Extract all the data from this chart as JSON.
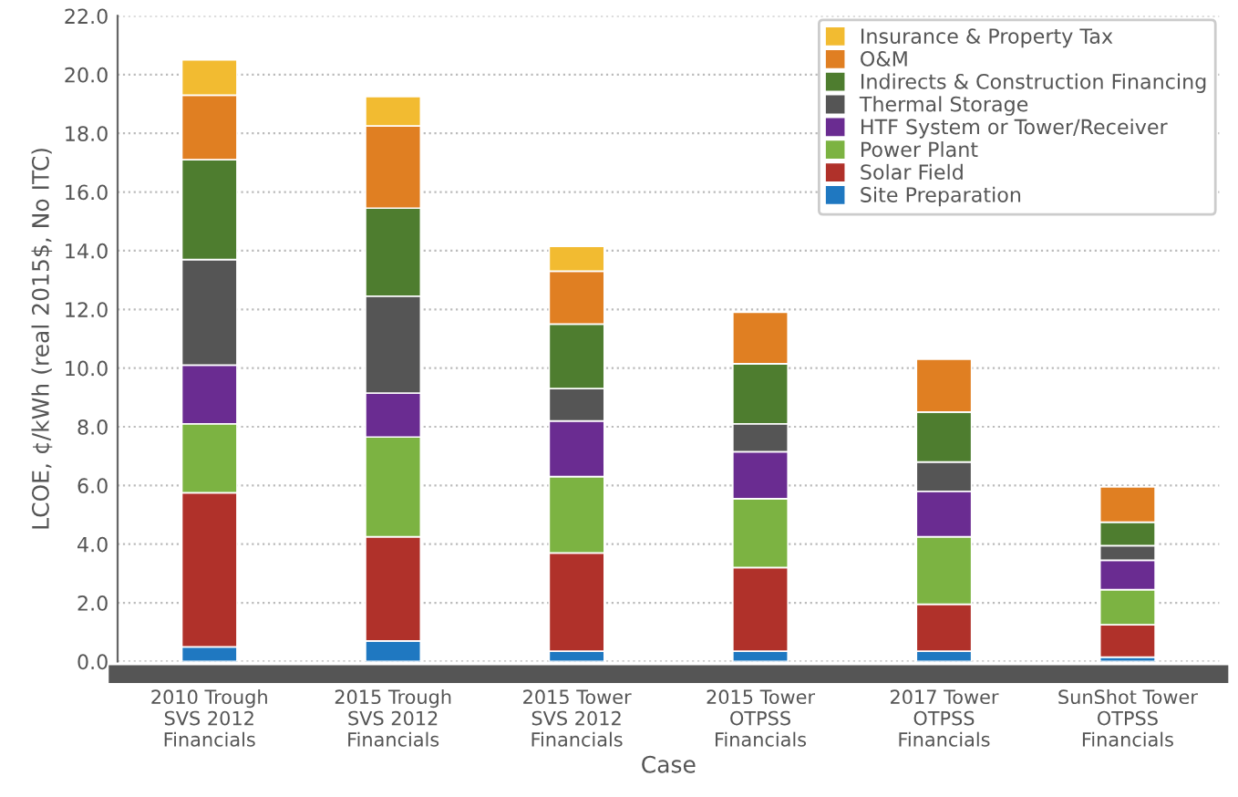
{
  "chart_data": {
    "type": "bar",
    "stacked": true,
    "ylabel": "LCOE, ¢/kWh (real 2015$, No ITC)",
    "xlabel": "Case",
    "categories": [
      "2010 Trough\nSVS 2012\nFinancials",
      "2015 Trough\nSVS 2012\nFinancials",
      "2015 Tower\nSVS 2012\nFinancials",
      "2015 Tower\nOTPSS\nFinancials",
      "2017 Tower\nOTPSS\nFinancials",
      "SunShot Tower\nOTPSS\nFinancials"
    ],
    "series": [
      {
        "name": "Site Preparation",
        "color": "#1f78c1",
        "values": [
          0.5,
          0.7,
          0.35,
          0.35,
          0.35,
          0.15
        ]
      },
      {
        "name": "Solar Field",
        "color": "#b0312a",
        "values": [
          5.25,
          3.55,
          3.35,
          2.85,
          1.6,
          1.1
        ]
      },
      {
        "name": "Power Plant",
        "color": "#7cb342",
        "values": [
          2.35,
          3.4,
          2.6,
          2.35,
          2.3,
          1.2
        ]
      },
      {
        "name": "HTF System or Tower/Receiver",
        "color": "#6a2c91",
        "values": [
          2.0,
          1.5,
          1.9,
          1.6,
          1.55,
          1.0
        ]
      },
      {
        "name": "Thermal Storage",
        "color": "#555555",
        "values": [
          3.6,
          3.3,
          1.1,
          0.95,
          1.0,
          0.5
        ]
      },
      {
        "name": "Indirects & Construction Financing",
        "color": "#4e7d2f",
        "values": [
          3.4,
          3.0,
          2.2,
          2.05,
          1.7,
          0.8
        ]
      },
      {
        "name": "O&M",
        "color": "#e07f22",
        "values": [
          2.2,
          2.8,
          1.8,
          1.75,
          1.8,
          1.2
        ]
      },
      {
        "name": "Insurance & Property Tax",
        "color": "#f2bb31",
        "values": [
          1.2,
          1.0,
          0.85,
          null,
          null,
          null
        ]
      }
    ],
    "ylim": [
      0,
      22
    ],
    "yticks": [
      {
        "value": 0,
        "label": "0.0"
      },
      {
        "value": 2,
        "label": "2.0"
      },
      {
        "value": 4,
        "label": "4.0"
      },
      {
        "value": 6,
        "label": "6.0"
      },
      {
        "value": 8,
        "label": "8.0"
      },
      {
        "value": 10,
        "label": "10.0"
      },
      {
        "value": 12,
        "label": "12.0"
      },
      {
        "value": 14,
        "label": "14.0"
      },
      {
        "value": 16,
        "label": "16.0"
      },
      {
        "value": 18,
        "label": "18.0"
      },
      {
        "value": 20,
        "label": "20.0"
      },
      {
        "value": 22,
        "label": "22.0"
      }
    ],
    "grid": "y",
    "legend": "top right"
  }
}
